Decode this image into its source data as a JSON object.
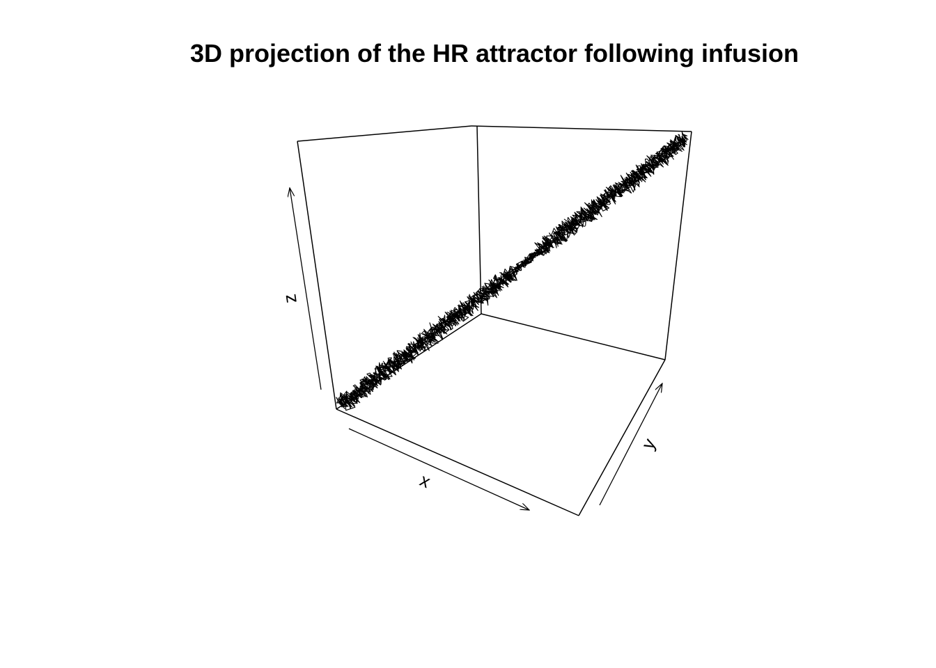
{
  "chart_data": {
    "type": "line",
    "projection": "3d",
    "title": "3D projection of the HR attractor following infusion",
    "xlabel": "x",
    "ylabel": "y",
    "zlabel": "z",
    "axes_arrows": true,
    "grid": false,
    "box": true,
    "trajectory": {
      "description_shape": "narrow noisy band along the box diagonal from the front-left-bottom corner to the back-right-top corner",
      "from": [
        0,
        0,
        0
      ],
      "to": [
        1,
        1,
        1
      ],
      "noise_amplitude": 0.02
    },
    "colors": {
      "line": "#000000",
      "box": "#000000",
      "background": "#ffffff"
    }
  }
}
